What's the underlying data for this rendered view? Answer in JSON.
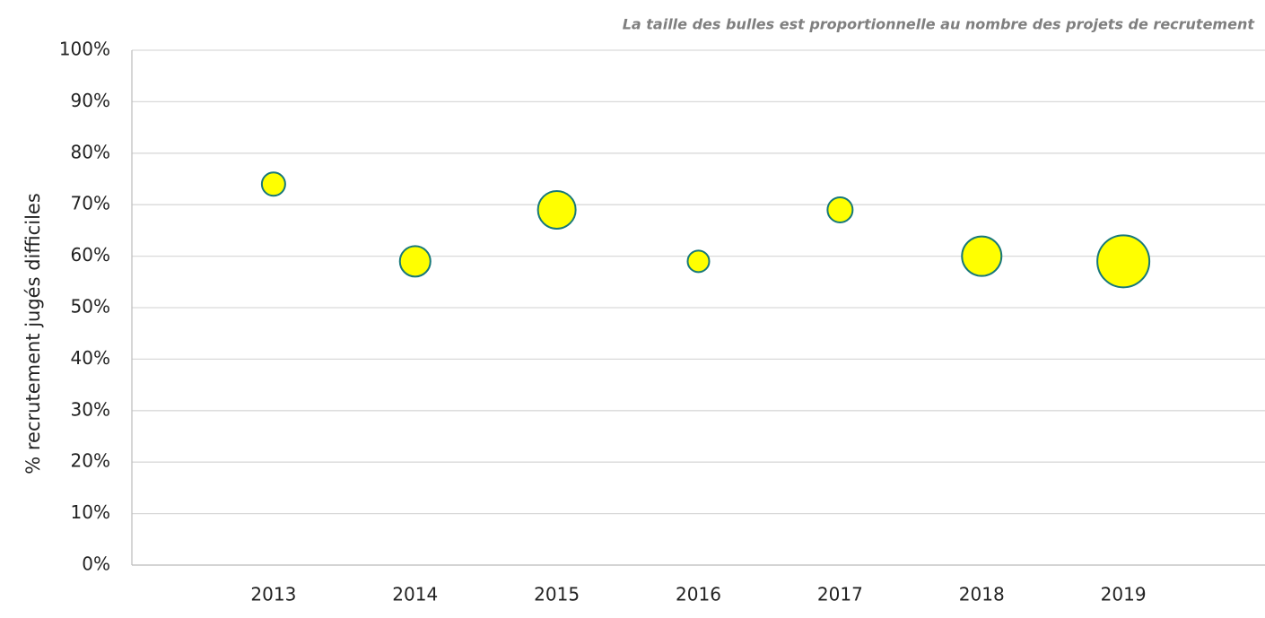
{
  "chart_data": {
    "type": "bubble",
    "subtitle": "La taille des bulles est proportionnelle au nombre des projets de recrutement",
    "y_label": "% recrutement  jugés difficiles",
    "x": [
      2013,
      2014,
      2015,
      2016,
      2017,
      2018,
      2019
    ],
    "series": [
      {
        "color": "#ffff00",
        "edge_color": "#17787a",
        "values": [
          74,
          59,
          69,
          59,
          69,
          60,
          59
        ],
        "sizes": [
          169,
          289,
          441,
          144,
          196,
          484,
          841
        ]
      }
    ],
    "xlim": [
      2012,
      2020
    ],
    "xticks": [
      2013,
      2014,
      2015,
      2016,
      2017,
      2018,
      2019
    ],
    "ylim": [
      0,
      100
    ],
    "yticks": [
      {
        "value": 0,
        "label": "0%"
      },
      {
        "value": 10,
        "label": "10%"
      },
      {
        "value": 20,
        "label": "20%"
      },
      {
        "value": 30,
        "label": "30%"
      },
      {
        "value": 40,
        "label": "40%"
      },
      {
        "value": 50,
        "label": "50%"
      },
      {
        "value": 60,
        "label": "60%"
      },
      {
        "value": 70,
        "label": "70%"
      },
      {
        "value": 80,
        "label": "80%"
      },
      {
        "value": 90,
        "label": "90%"
      },
      {
        "value": 100,
        "label": "100%"
      }
    ],
    "grid": true
  }
}
